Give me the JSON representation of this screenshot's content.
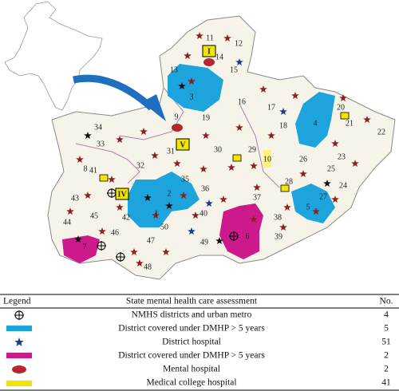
{
  "map": {
    "district_labels": [
      "11",
      "12",
      "13",
      "14",
      "15",
      "3",
      "16",
      "17",
      "9",
      "19",
      "18",
      "4",
      "20",
      "21",
      "22",
      "34",
      "33",
      "31",
      "30",
      "29",
      "10",
      "26",
      "23",
      "25",
      "8",
      "41",
      "32",
      "35",
      "28",
      "24",
      "27",
      "43",
      "36",
      "37",
      "42",
      "2",
      "1",
      "40",
      "5",
      "44",
      "45",
      "38",
      "6",
      "50",
      "46",
      "47",
      "49",
      "39",
      "7",
      "48"
    ],
    "hospital_labels": [
      "I",
      "V",
      "IV"
    ]
  },
  "legend": {
    "headers": [
      "Legend",
      "State mental health care assessment",
      "No."
    ],
    "rows": [
      {
        "description": "NMHS districts and urban metro",
        "count": "4"
      },
      {
        "description": "District covered under DMHP > 5 years",
        "count": "5"
      },
      {
        "description": "District hospital",
        "count": "51"
      },
      {
        "description": "District covered under DMHP > 5 years",
        "count": "2"
      },
      {
        "description": "Mental hospital",
        "count": "2"
      },
      {
        "description": "Medical college hospital",
        "count": "41"
      }
    ]
  }
}
